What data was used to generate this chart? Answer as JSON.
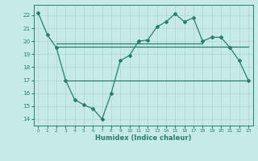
{
  "x": [
    0,
    1,
    2,
    3,
    4,
    5,
    6,
    7,
    8,
    9,
    10,
    11,
    12,
    13,
    14,
    15,
    16,
    17,
    18,
    19,
    20,
    21,
    22,
    23
  ],
  "line_main": [
    22.2,
    20.5,
    19.5,
    17.0,
    15.5,
    15.1,
    14.8,
    14.0,
    16.0,
    18.5,
    18.9,
    20.0,
    20.1,
    21.1,
    21.5,
    22.1,
    21.5,
    21.8,
    20.0,
    20.3,
    20.3,
    19.5,
    18.5,
    17.0
  ],
  "line_flat1": {
    "x_start": 2,
    "x_end": 23,
    "y": 19.6
  },
  "line_flat2": {
    "x_start": 2,
    "x_end": 18,
    "y": 19.8
  },
  "line_flat3": {
    "x_start": 3,
    "x_end": 23,
    "y": 17.0
  },
  "line_color": "#2a7d6e",
  "bg_color": "#c6eae6",
  "grid_color": "#a8d8d0",
  "xlabel": "Humidex (Indice chaleur)",
  "ylim": [
    13.5,
    22.8
  ],
  "xlim": [
    -0.5,
    23.5
  ],
  "yticks": [
    14,
    15,
    16,
    17,
    18,
    19,
    20,
    21,
    22
  ],
  "xticks": [
    0,
    1,
    2,
    3,
    4,
    5,
    6,
    7,
    8,
    9,
    10,
    11,
    12,
    13,
    14,
    15,
    16,
    17,
    18,
    19,
    20,
    21,
    22,
    23
  ]
}
